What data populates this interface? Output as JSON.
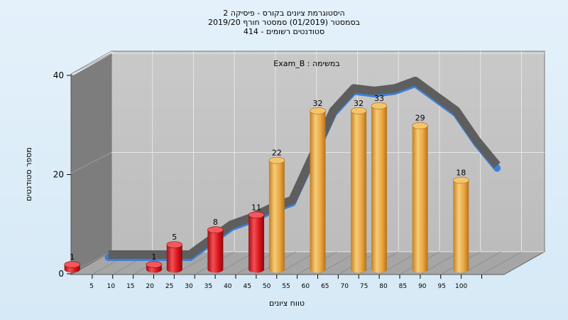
{
  "chart_data": {
    "type": "bar",
    "title_lines": [
      "היסטוגרמת ציונים בקורס - פיסיקה 2",
      "בסמסטר  (01/2019)  סמסטר חורף 2019/20",
      "סטודנטים רשומים - 414"
    ],
    "annotation": "Exam_B : במשימה",
    "xlabel": "טווח ציונים",
    "ylabel": "מספר סטודנטים",
    "ylim": [
      0,
      40
    ],
    "yticks": [
      "0",
      "20",
      "40"
    ],
    "xticks": [
      "5",
      "10",
      "15",
      "20",
      "25",
      "30",
      "35",
      "40",
      "45",
      "50",
      "55",
      "60",
      "65",
      "70",
      "75",
      "80",
      "85",
      "90",
      "95",
      "100"
    ],
    "bars": [
      {
        "x": 5,
        "value": 1,
        "label": "1",
        "color": "red"
      },
      {
        "x": 25,
        "value": 1,
        "label": "1",
        "color": "red"
      },
      {
        "x": 30,
        "value": 5,
        "label": "5",
        "color": "red"
      },
      {
        "x": 40,
        "value": 8,
        "label": "8",
        "color": "red"
      },
      {
        "x": 50,
        "value": 11,
        "label": "11",
        "color": "red"
      },
      {
        "x": 55,
        "value": 22,
        "label": "22",
        "color": "orange"
      },
      {
        "x": 65,
        "value": 32,
        "label": "32",
        "color": "orange"
      },
      {
        "x": 75,
        "value": 32,
        "label": "32",
        "color": "orange"
      },
      {
        "x": 80,
        "value": 33,
        "label": "33",
        "color": "orange"
      },
      {
        "x": 90,
        "value": 29,
        "label": "29",
        "color": "orange"
      },
      {
        "x": 100,
        "value": 18,
        "label": "18",
        "color": "orange"
      }
    ],
    "trend_x": [
      10,
      15,
      20,
      25,
      30,
      35,
      40,
      45,
      50,
      55,
      60,
      65,
      70,
      75,
      80,
      85,
      90,
      95,
      100,
      105
    ],
    "trend_values": [
      1,
      1,
      1,
      1,
      1,
      4,
      7,
      8.5,
      10.5,
      12,
      21,
      30,
      34.5,
      34,
      34.5,
      36,
      33,
      30,
      24,
      19
    ],
    "colors": {
      "red": "#d8141a",
      "orange": "#e9a540",
      "trend": "#5e5e5e",
      "trend_underside": "#3d7fd8",
      "plot_back": "#c2c2c2",
      "left_wall": "#7d7d7d",
      "floor": "#a6a6a6"
    },
    "grid": true
  }
}
